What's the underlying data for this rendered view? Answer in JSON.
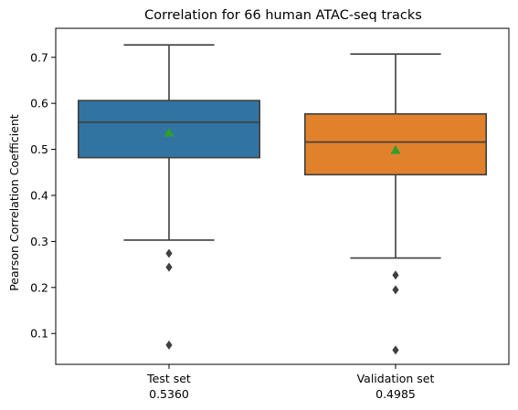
{
  "chart_data": {
    "type": "box",
    "title": "Correlation for 66 human ATAC-seq tracks",
    "xlabel": "",
    "ylabel": "Pearson Correlation Coefficient",
    "ylim": [
      0.033,
      0.763
    ],
    "yticks": [
      0.1,
      0.2,
      0.3,
      0.4,
      0.5,
      0.6,
      0.7
    ],
    "ytick_labels": [
      "0.1",
      "0.2",
      "0.3",
      "0.4",
      "0.5",
      "0.6",
      "0.7"
    ],
    "grid": false,
    "colors": {
      "box_test": "#3274a1",
      "box_validation": "#e1812c",
      "lines": "#3f3f3f",
      "mean_marker": "#2ca02c"
    },
    "boxes": [
      {
        "name": "Test set",
        "score": "0.5360",
        "whisker_low": 0.303,
        "q1": 0.482,
        "median": 0.559,
        "q3": 0.606,
        "whisker_high": 0.727,
        "mean": 0.536,
        "outliers": [
          0.274,
          0.244,
          0.075
        ]
      },
      {
        "name": "Validation set",
        "score": "0.4985",
        "whisker_low": 0.264,
        "q1": 0.445,
        "median": 0.516,
        "q3": 0.577,
        "whisker_high": 0.707,
        "mean": 0.4985,
        "outliers": [
          0.227,
          0.195,
          0.064
        ]
      }
    ]
  }
}
